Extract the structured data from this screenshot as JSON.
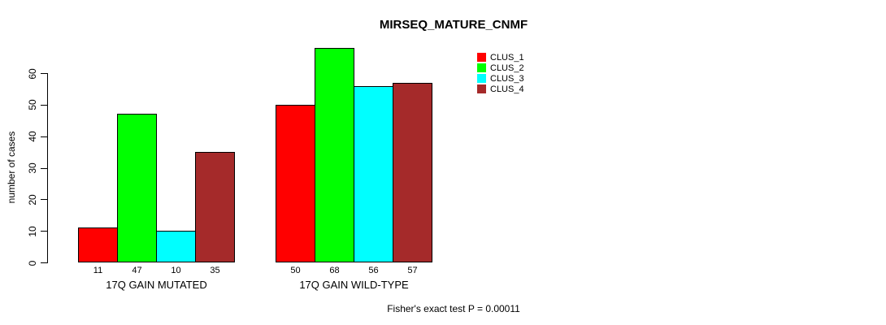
{
  "title": "MIRSEQ_MATURE_CNMF",
  "annotation": "Fisher's exact test P = 0.00011",
  "chart_data": {
    "type": "bar",
    "title": "MIRSEQ_MATURE_CNMF",
    "categories": [
      "17Q GAIN MUTATED",
      "17Q GAIN WILD-TYPE"
    ],
    "series": [
      {
        "name": "CLUS_1",
        "color": "#FF0000",
        "values": [
          11,
          50
        ]
      },
      {
        "name": "CLUS_2",
        "color": "#00FF00",
        "values": [
          47,
          68
        ]
      },
      {
        "name": "CLUS_3",
        "color": "#00FFFF",
        "values": [
          10,
          56
        ]
      },
      {
        "name": "CLUS_4",
        "color": "#A52A2A",
        "values": [
          35,
          57
        ]
      }
    ],
    "bar_value_labels": [
      [
        11,
        47,
        10,
        35
      ],
      [
        50,
        68,
        56,
        57
      ]
    ],
    "xlabel": "",
    "ylabel": "number of cases",
    "ylim": [
      0,
      60
    ],
    "yticks": [
      0,
      10,
      20,
      30,
      40,
      50,
      60
    ],
    "grid": false,
    "legend_position": "top-right",
    "legend_entries": [
      "CLUS_1",
      "CLUS_2",
      "CLUS_3",
      "CLUS_4"
    ],
    "annotation": "Fisher's exact test P = 0.00011",
    "bar_border_color": "#000000",
    "axis_color": "#000000"
  }
}
